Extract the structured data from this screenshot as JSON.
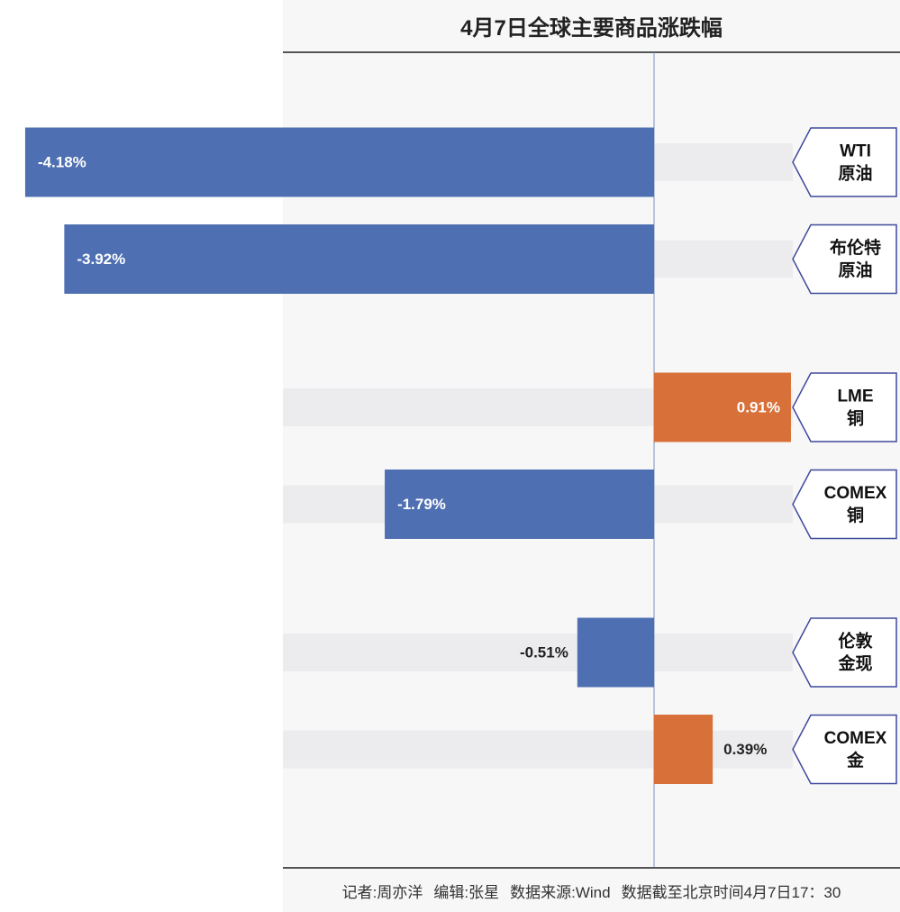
{
  "chart_data": {
    "type": "bar",
    "orientation": "horizontal",
    "title": "4月7日全球主要商品涨跌幅",
    "categories": [
      [
        "WTI",
        "原油"
      ],
      [
        "布伦特",
        "原油"
      ],
      [
        "LME",
        "铜"
      ],
      [
        "COMEX",
        "铜"
      ],
      [
        "伦敦",
        "金现"
      ],
      [
        "COMEX",
        "金"
      ]
    ],
    "values": [
      -4.18,
      -3.92,
      0.91,
      -1.79,
      -0.51,
      0.39
    ],
    "value_labels": [
      "-4.18%",
      "-3.92%",
      "0.91%",
      "-1.79%",
      "-0.51%",
      "0.39%"
    ],
    "colors": {
      "negative": "#4e6fb2",
      "positive": "#d8703a"
    },
    "group_gaps_after": [
      1,
      3
    ],
    "grid": false,
    "legend": "none"
  },
  "footer": {
    "reporter": "记者:周亦洋",
    "editor": "编辑:张星",
    "source": "数据来源:Wind",
    "cutoff": "数据截至北京时间4月7日17：30"
  }
}
